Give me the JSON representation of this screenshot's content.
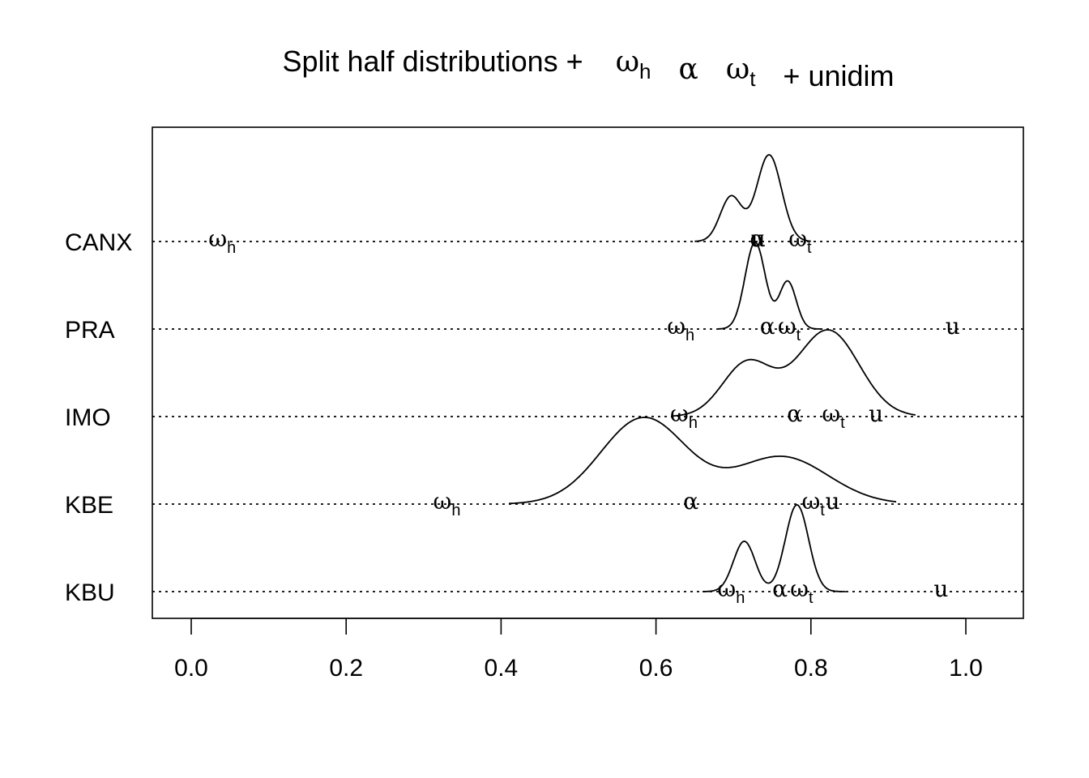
{
  "chart_data": {
    "type": "ridgeline-density",
    "title": {
      "prefix": "Split half distributions +",
      "symbols": [
        {
          "base": "ω",
          "sub": "h"
        },
        {
          "base": "α",
          "sub": ""
        },
        {
          "base": "ω",
          "sub": "t"
        }
      ],
      "suffix": "+ unidim"
    },
    "x_ticks": [
      "0.0",
      "0.2",
      "0.4",
      "0.6",
      "0.8",
      "1.0"
    ],
    "x_tick_values": [
      0.0,
      0.2,
      0.4,
      0.6,
      0.8,
      1.0
    ],
    "xlim": [
      -0.05,
      1.075
    ],
    "marker_labels": {
      "omega_h": {
        "base": "ω",
        "sub": "h"
      },
      "alpha": {
        "base": "α",
        "sub": ""
      },
      "omega_t": {
        "base": "ω",
        "sub": "t"
      },
      "unidim": {
        "base": "u",
        "sub": ""
      }
    },
    "series": [
      {
        "name": "CANX",
        "density": {
          "range": [
            0.65,
            0.8
          ],
          "peak_height": 1.0,
          "components": [
            {
              "mean": 0.697,
              "sd": 0.014,
              "weight": 0.52
            },
            {
              "mean": 0.746,
              "sd": 0.016,
              "weight": 1.0
            }
          ]
        },
        "markers": {
          "omega_h": 0.04,
          "alpha": 0.731,
          "omega_t": 0.786,
          "unidim": 0.732
        }
      },
      {
        "name": "PRA",
        "density": {
          "range": [
            0.68,
            0.815
          ],
          "peak_height": 1.0,
          "components": [
            {
              "mean": 0.728,
              "sd": 0.013,
              "weight": 1.0
            },
            {
              "mean": 0.77,
              "sd": 0.011,
              "weight": 0.55
            }
          ]
        },
        "markers": {
          "omega_h": 0.632,
          "alpha": 0.744,
          "omega_t": 0.772,
          "unidim": 0.983
        }
      },
      {
        "name": "IMO",
        "density": {
          "range": [
            0.62,
            0.935
          ],
          "peak_height": 1.0,
          "components": [
            {
              "mean": 0.718,
              "sd": 0.032,
              "weight": 0.62
            },
            {
              "mean": 0.822,
              "sd": 0.04,
              "weight": 1.0
            }
          ]
        },
        "markers": {
          "omega_h": 0.636,
          "alpha": 0.779,
          "omega_t": 0.829,
          "unidim": 0.884
        }
      },
      {
        "name": "KBE",
        "density": {
          "range": [
            0.41,
            0.91
          ],
          "peak_height": 1.0,
          "components": [
            {
              "mean": 0.584,
              "sd": 0.055,
              "weight": 1.0
            },
            {
              "mean": 0.762,
              "sd": 0.06,
              "weight": 0.55
            }
          ]
        },
        "markers": {
          "omega_h": 0.33,
          "alpha": 0.645,
          "omega_t": 0.803,
          "unidim": 0.828
        }
      },
      {
        "name": "KBU",
        "density": {
          "range": [
            0.66,
            0.845
          ],
          "peak_height": 1.0,
          "components": [
            {
              "mean": 0.714,
              "sd": 0.014,
              "weight": 0.58
            },
            {
              "mean": 0.782,
              "sd": 0.015,
              "weight": 1.0
            }
          ]
        },
        "markers": {
          "omega_h": 0.697,
          "alpha": 0.76,
          "omega_t": 0.788,
          "unidim": 0.968
        }
      }
    ],
    "grid": false,
    "baseline_style": "dotted"
  }
}
